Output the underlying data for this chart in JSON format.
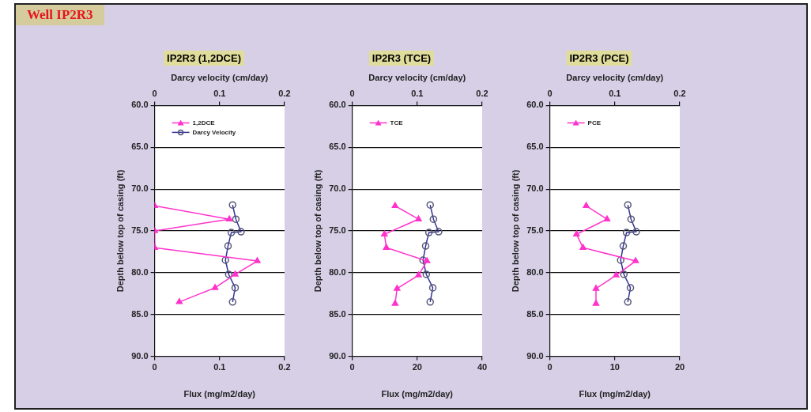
{
  "chart_data": [
    {
      "type": "line",
      "title": "IP2R3 (1,2DCE)",
      "xlabel": "Flux (mg/m2/day)",
      "x2label": "Darcy velocity (cm/day)",
      "ylabel": "Depth below top of casing (ft)",
      "annotations": [
        "Well IP2R3"
      ],
      "xlim": [
        0,
        0.2
      ],
      "xticks": [
        0,
        0.1,
        0.2
      ],
      "x2lim": [
        0,
        0.2
      ],
      "x2ticks": [
        0,
        0.1,
        0.2
      ],
      "ylim": [
        90,
        60
      ],
      "yticks": [
        {
          "value": 60,
          "label": "60.0"
        },
        {
          "value": 65,
          "label": "65.0"
        },
        {
          "value": 70,
          "label": "70.0"
        },
        {
          "value": 75,
          "label": "75.0"
        },
        {
          "value": 80,
          "label": "80.0"
        },
        {
          "value": 85,
          "label": "85.0"
        },
        {
          "value": 90,
          "label": "90.0"
        }
      ],
      "grid": "y",
      "legend": "top left",
      "series": [
        {
          "name": "1,2DCE",
          "color": "#ff33cc",
          "marker": "triangle",
          "x": [
            0,
            0.115,
            0,
            0,
            0.158,
            0.124,
            0.093,
            0.038
          ],
          "values": [
            72.0,
            73.6,
            75.0,
            77.0,
            78.6,
            80.2,
            81.8,
            83.5
          ]
        },
        {
          "name": "Darcy Velocity",
          "color": "#333399",
          "marker": "circle",
          "axis": "x2",
          "x": [
            0.12,
            0.125,
            0.133,
            0.118,
            0.113,
            0.109,
            0.114,
            0.124,
            0.12
          ],
          "values": [
            71.9,
            73.6,
            75.1,
            75.2,
            76.8,
            78.5,
            80.2,
            81.8,
            83.5
          ]
        }
      ]
    },
    {
      "type": "line",
      "title": "IP2R3 (TCE)",
      "xlabel": "Flux (mg/m2/day)",
      "x2label": "Darcy velocity (cm/day)",
      "ylabel": "Depth below top of casing (ft)",
      "xlim": [
        0,
        40
      ],
      "xticks": [
        0,
        20,
        40
      ],
      "x2lim": [
        0,
        0.2
      ],
      "x2ticks": [
        0,
        0.1,
        0.2
      ],
      "ylim": [
        90,
        60
      ],
      "yticks": [
        {
          "value": 60,
          "label": "60.0"
        },
        {
          "value": 65,
          "label": "65.0"
        },
        {
          "value": 70,
          "label": "70.0"
        },
        {
          "value": 75,
          "label": "75.0"
        },
        {
          "value": 80,
          "label": "80.0"
        },
        {
          "value": 85,
          "label": "85.0"
        },
        {
          "value": 90,
          "label": "90.0"
        }
      ],
      "grid": "y",
      "legend": "top left",
      "series": [
        {
          "name": "TCE",
          "color": "#ff33cc",
          "marker": "triangle",
          "x": [
            13.2,
            20.4,
            9.9,
            10.5,
            23.0,
            20.4,
            13.8,
            13.2
          ],
          "values": [
            72.0,
            73.6,
            75.4,
            77.0,
            78.6,
            80.3,
            81.9,
            83.7
          ]
        },
        {
          "color": "#333399",
          "marker": "circle",
          "axis": "x2",
          "x": [
            0.12,
            0.125,
            0.133,
            0.118,
            0.113,
            0.109,
            0.114,
            0.124,
            0.12
          ],
          "values": [
            71.9,
            73.6,
            75.1,
            75.2,
            76.8,
            78.5,
            80.2,
            81.8,
            83.5
          ]
        }
      ]
    },
    {
      "type": "line",
      "title": "IP2R3 (PCE)",
      "xlabel": "Flux (mg/m2/day)",
      "x2label": "Darcy velocity (cm/day)",
      "ylabel": "Depth below top of casing (ft)",
      "xlim": [
        0,
        20
      ],
      "xticks": [
        0,
        10,
        20
      ],
      "x2lim": [
        0,
        0.2
      ],
      "x2ticks": [
        0,
        0.1,
        0.2
      ],
      "ylim": [
        90,
        60
      ],
      "yticks": [
        {
          "value": 60,
          "label": "60.0"
        },
        {
          "value": 65,
          "label": "65.0"
        },
        {
          "value": 70,
          "label": "70.0"
        },
        {
          "value": 75,
          "label": "75.0"
        },
        {
          "value": 80,
          "label": "80.0"
        },
        {
          "value": 85,
          "label": "85.0"
        },
        {
          "value": 90,
          "label": "90.0"
        }
      ],
      "grid": "y",
      "legend": "top left",
      "series": [
        {
          "name": "PCE",
          "color": "#ff33cc",
          "marker": "triangle",
          "x": [
            5.6,
            8.8,
            4.1,
            5.1,
            13.2,
            10.2,
            7.1,
            7.1
          ],
          "values": [
            72.0,
            73.6,
            75.4,
            77.0,
            78.6,
            80.3,
            81.9,
            83.7
          ]
        },
        {
          "color": "#333399",
          "marker": "circle",
          "axis": "x2",
          "x": [
            0.12,
            0.125,
            0.133,
            0.118,
            0.113,
            0.109,
            0.114,
            0.124,
            0.12
          ],
          "values": [
            71.9,
            73.6,
            75.1,
            75.2,
            76.8,
            78.5,
            80.2,
            81.8,
            83.5
          ]
        }
      ]
    }
  ]
}
